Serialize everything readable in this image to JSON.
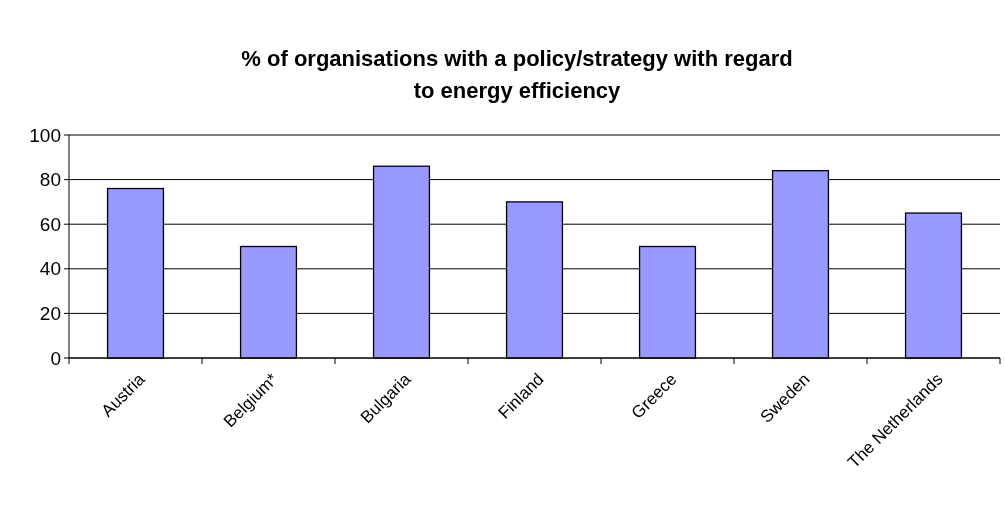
{
  "chart_data": {
    "type": "bar",
    "title": "% of organisations with a policy/strategy with regard to energy efficiency",
    "categories": [
      "Austria",
      "Belgium*",
      "Bulgaria",
      "Finland",
      "Greece",
      "Sweden",
      "The Netherlands"
    ],
    "values": [
      76,
      50,
      86,
      70,
      50,
      84,
      65
    ],
    "color": "#9999ff",
    "ylim": [
      0,
      100
    ],
    "yticks": [
      0,
      20,
      40,
      60,
      80,
      100
    ],
    "grid": "y"
  }
}
